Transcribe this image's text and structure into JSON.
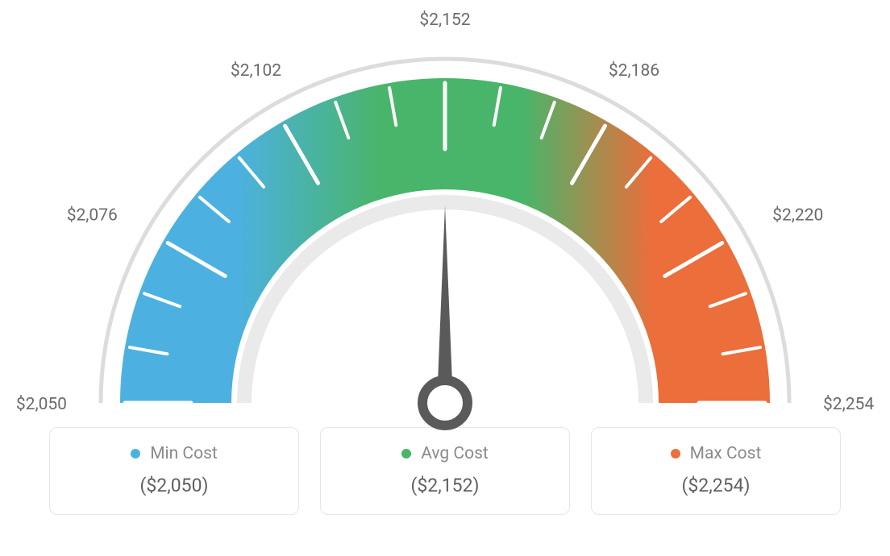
{
  "gauge": {
    "type": "gauge",
    "min_value": 2050,
    "max_value": 2254,
    "current_value": 2152,
    "tick_labels": [
      "$2,050",
      "$2,076",
      "$2,102",
      "$2,152",
      "$2,186",
      "$2,220",
      "$2,254"
    ],
    "needle_angle_deg": 0,
    "colors": {
      "left": "#4cb1e0",
      "middle": "#49b56a",
      "right": "#eb6e3b",
      "outer_ring": "#dcdcdc",
      "inner_ring": "#eaeaea",
      "tick_major": "#ffffff",
      "tick_label": "#6b6b6b",
      "needle": "#5a5a5a",
      "background": "#ffffff"
    },
    "geometry": {
      "outer_ring_radius": 427,
      "outer_ring_width": 5,
      "arc_outer_radius": 403,
      "arc_inner_radius": 265,
      "inner_ring_radius": 258,
      "inner_ring_width": 18,
      "start_angle_deg": -90,
      "end_angle_deg": 90,
      "major_tick_count": 7,
      "minor_ticks_between": 2,
      "hub_outer_radius": 28,
      "hub_stroke_width": 12
    },
    "label_fontsize": 21
  },
  "legend": {
    "items": [
      {
        "key": "min",
        "label": "Min Cost",
        "value": "($2,050)",
        "color": "#4cb1e0"
      },
      {
        "key": "avg",
        "label": "Avg Cost",
        "value": "($2,152)",
        "color": "#49b56a"
      },
      {
        "key": "max",
        "label": "Max Cost",
        "value": "($2,254)",
        "color": "#eb6e3b"
      }
    ],
    "card_border_color": "#e6e6e6",
    "card_border_radius": 10,
    "label_fontsize": 21,
    "value_fontsize": 23,
    "value_color": "#606060"
  }
}
